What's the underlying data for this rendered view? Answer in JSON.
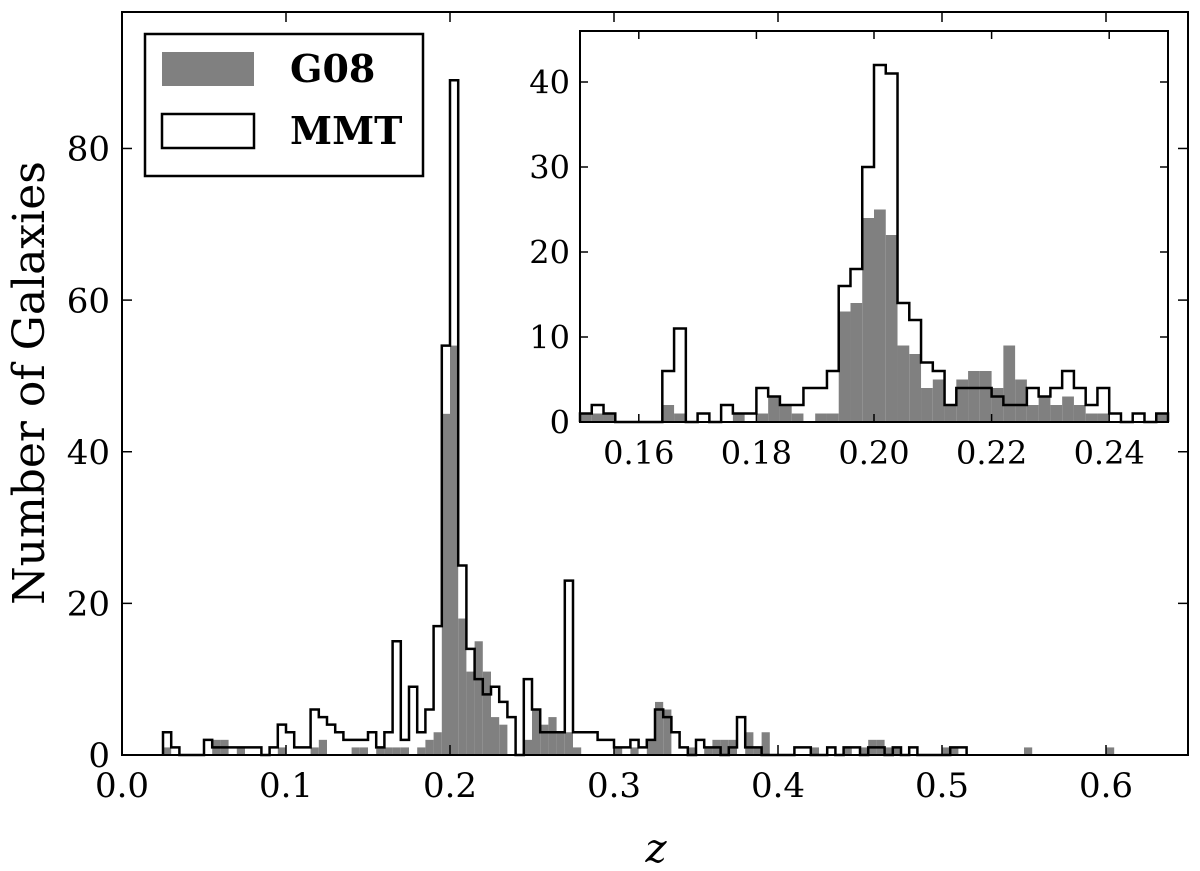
{
  "chart_data": [
    {
      "id": "main",
      "type": "bar",
      "subtype": "histogram",
      "title": "",
      "xlabel": "z",
      "ylabel": "Number of Galaxies",
      "xlim": [
        0.0,
        0.65
      ],
      "ylim": [
        0,
        98
      ],
      "bin_width": 0.005,
      "xticks": [
        0.0,
        0.1,
        0.2,
        0.3,
        0.4,
        0.5,
        0.6
      ],
      "xtick_labels": [
        "0.0",
        "0.1",
        "0.2",
        "0.3",
        "0.4",
        "0.5",
        "0.6"
      ],
      "yticks": [
        0,
        20,
        40,
        60,
        80
      ],
      "ytick_labels": [
        "0",
        "20",
        "40",
        "60",
        "80"
      ],
      "legend": {
        "position": "top-left",
        "entries": [
          {
            "label": "G08",
            "style": "filled",
            "color": "#808080"
          },
          {
            "label": "MMT",
            "style": "outline",
            "color": "#000000"
          }
        ]
      },
      "series": [
        {
          "name": "G08",
          "style": "filled",
          "color": "#808080",
          "bins": [
            [
              0.025,
              1
            ],
            [
              0.055,
              2
            ],
            [
              0.06,
              2
            ],
            [
              0.07,
              1
            ],
            [
              0.095,
              1
            ],
            [
              0.115,
              1
            ],
            [
              0.12,
              2
            ],
            [
              0.14,
              1
            ],
            [
              0.145,
              1
            ],
            [
              0.155,
              1
            ],
            [
              0.16,
              1
            ],
            [
              0.165,
              1
            ],
            [
              0.17,
              1
            ],
            [
              0.18,
              1
            ],
            [
              0.185,
              2
            ],
            [
              0.19,
              3
            ],
            [
              0.195,
              45
            ],
            [
              0.2,
              54
            ],
            [
              0.205,
              18
            ],
            [
              0.21,
              11
            ],
            [
              0.215,
              15
            ],
            [
              0.22,
              11
            ],
            [
              0.225,
              5
            ],
            [
              0.23,
              4
            ],
            [
              0.245,
              2
            ],
            [
              0.25,
              6
            ],
            [
              0.255,
              4
            ],
            [
              0.26,
              5
            ],
            [
              0.265,
              3
            ],
            [
              0.27,
              3
            ],
            [
              0.275,
              1
            ],
            [
              0.3,
              1
            ],
            [
              0.31,
              1
            ],
            [
              0.32,
              2
            ],
            [
              0.325,
              7
            ],
            [
              0.33,
              6
            ],
            [
              0.345,
              1
            ],
            [
              0.355,
              1
            ],
            [
              0.36,
              2
            ],
            [
              0.365,
              2
            ],
            [
              0.37,
              2
            ],
            [
              0.38,
              3
            ],
            [
              0.385,
              1
            ],
            [
              0.39,
              3
            ],
            [
              0.42,
              1
            ],
            [
              0.44,
              1
            ],
            [
              0.45,
              1
            ],
            [
              0.455,
              2
            ],
            [
              0.46,
              2
            ],
            [
              0.465,
              1
            ],
            [
              0.47,
              1
            ],
            [
              0.5,
              1
            ],
            [
              0.505,
              1
            ],
            [
              0.55,
              1
            ],
            [
              0.6,
              1
            ]
          ]
        },
        {
          "name": "MMT",
          "style": "outline",
          "color": "#000000",
          "bins": [
            [
              0.025,
              3
            ],
            [
              0.03,
              1
            ],
            [
              0.05,
              2
            ],
            [
              0.055,
              1
            ],
            [
              0.06,
              1
            ],
            [
              0.065,
              1
            ],
            [
              0.07,
              1
            ],
            [
              0.075,
              1
            ],
            [
              0.08,
              1
            ],
            [
              0.09,
              1
            ],
            [
              0.095,
              4
            ],
            [
              0.1,
              3
            ],
            [
              0.105,
              1
            ],
            [
              0.11,
              1
            ],
            [
              0.115,
              6
            ],
            [
              0.12,
              5
            ],
            [
              0.125,
              4
            ],
            [
              0.13,
              3
            ],
            [
              0.135,
              2
            ],
            [
              0.14,
              2
            ],
            [
              0.145,
              2
            ],
            [
              0.15,
              3
            ],
            [
              0.155,
              1
            ],
            [
              0.16,
              3
            ],
            [
              0.165,
              15
            ],
            [
              0.17,
              2
            ],
            [
              0.175,
              9
            ],
            [
              0.18,
              3
            ],
            [
              0.185,
              6
            ],
            [
              0.19,
              17
            ],
            [
              0.195,
              54
            ],
            [
              0.2,
              89
            ],
            [
              0.205,
              25
            ],
            [
              0.21,
              14
            ],
            [
              0.215,
              10
            ],
            [
              0.22,
              8
            ],
            [
              0.225,
              9
            ],
            [
              0.23,
              7
            ],
            [
              0.235,
              5
            ],
            [
              0.245,
              10
            ],
            [
              0.25,
              6
            ],
            [
              0.255,
              3
            ],
            [
              0.26,
              3
            ],
            [
              0.265,
              3
            ],
            [
              0.27,
              23
            ],
            [
              0.275,
              3
            ],
            [
              0.28,
              3
            ],
            [
              0.285,
              3
            ],
            [
              0.29,
              2
            ],
            [
              0.295,
              2
            ],
            [
              0.3,
              1
            ],
            [
              0.305,
              1
            ],
            [
              0.31,
              2
            ],
            [
              0.315,
              1
            ],
            [
              0.32,
              2
            ],
            [
              0.325,
              6
            ],
            [
              0.33,
              5
            ],
            [
              0.335,
              3
            ],
            [
              0.34,
              1
            ],
            [
              0.35,
              2
            ],
            [
              0.355,
              1
            ],
            [
              0.36,
              1
            ],
            [
              0.37,
              1
            ],
            [
              0.375,
              5
            ],
            [
              0.38,
              1
            ],
            [
              0.385,
              1
            ],
            [
              0.41,
              1
            ],
            [
              0.415,
              1
            ],
            [
              0.43,
              1
            ],
            [
              0.44,
              1
            ],
            [
              0.445,
              1
            ],
            [
              0.455,
              1
            ],
            [
              0.46,
              1
            ],
            [
              0.47,
              1
            ],
            [
              0.48,
              1
            ],
            [
              0.505,
              1
            ],
            [
              0.51,
              1
            ]
          ]
        }
      ]
    },
    {
      "id": "inset",
      "type": "bar",
      "subtype": "histogram",
      "title": "",
      "xlabel": "",
      "ylabel": "",
      "xlim": [
        0.15,
        0.25
      ],
      "ylim": [
        0,
        46
      ],
      "bin_width": 0.002,
      "xticks": [
        0.16,
        0.18,
        0.2,
        0.22,
        0.24
      ],
      "xtick_labels": [
        "0.16",
        "0.18",
        "0.20",
        "0.22",
        "0.24"
      ],
      "yticks": [
        0,
        10,
        20,
        30,
        40
      ],
      "ytick_labels": [
        "0",
        "10",
        "20",
        "30",
        "40"
      ],
      "series": [
        {
          "name": "G08",
          "style": "filled",
          "color": "#808080",
          "bins": [
            [
              0.15,
              1
            ],
            [
              0.152,
              1
            ],
            [
              0.154,
              1
            ],
            [
              0.164,
              2
            ],
            [
              0.166,
              1
            ],
            [
              0.176,
              1
            ],
            [
              0.18,
              1
            ],
            [
              0.182,
              3
            ],
            [
              0.184,
              2
            ],
            [
              0.186,
              1
            ],
            [
              0.19,
              1
            ],
            [
              0.192,
              1
            ],
            [
              0.194,
              13
            ],
            [
              0.196,
              14
            ],
            [
              0.198,
              24
            ],
            [
              0.2,
              25
            ],
            [
              0.202,
              22
            ],
            [
              0.204,
              9
            ],
            [
              0.206,
              8
            ],
            [
              0.208,
              4
            ],
            [
              0.21,
              5
            ],
            [
              0.212,
              2
            ],
            [
              0.214,
              5
            ],
            [
              0.216,
              6
            ],
            [
              0.218,
              6
            ],
            [
              0.22,
              4
            ],
            [
              0.222,
              9
            ],
            [
              0.224,
              5
            ],
            [
              0.226,
              2
            ],
            [
              0.228,
              3
            ],
            [
              0.23,
              2
            ],
            [
              0.232,
              3
            ],
            [
              0.234,
              2
            ],
            [
              0.236,
              1
            ],
            [
              0.238,
              1
            ],
            [
              0.248,
              1
            ]
          ]
        },
        {
          "name": "MMT",
          "style": "outline",
          "color": "#000000",
          "bins": [
            [
              0.15,
              1
            ],
            [
              0.152,
              2
            ],
            [
              0.154,
              1
            ],
            [
              0.164,
              6
            ],
            [
              0.166,
              11
            ],
            [
              0.17,
              1
            ],
            [
              0.174,
              2
            ],
            [
              0.176,
              1
            ],
            [
              0.178,
              1
            ],
            [
              0.18,
              4
            ],
            [
              0.182,
              3
            ],
            [
              0.184,
              2
            ],
            [
              0.186,
              2
            ],
            [
              0.188,
              4
            ],
            [
              0.19,
              4
            ],
            [
              0.192,
              6
            ],
            [
              0.194,
              16
            ],
            [
              0.196,
              18
            ],
            [
              0.198,
              30
            ],
            [
              0.2,
              42
            ],
            [
              0.202,
              41
            ],
            [
              0.204,
              14
            ],
            [
              0.206,
              12
            ],
            [
              0.208,
              7
            ],
            [
              0.21,
              6
            ],
            [
              0.212,
              2
            ],
            [
              0.214,
              4
            ],
            [
              0.216,
              4
            ],
            [
              0.218,
              4
            ],
            [
              0.22,
              3
            ],
            [
              0.222,
              2
            ],
            [
              0.224,
              2
            ],
            [
              0.226,
              4
            ],
            [
              0.228,
              3
            ],
            [
              0.23,
              4
            ],
            [
              0.232,
              6
            ],
            [
              0.234,
              4
            ],
            [
              0.236,
              2
            ],
            [
              0.238,
              4
            ],
            [
              0.24,
              1
            ],
            [
              0.244,
              1
            ],
            [
              0.248,
              1
            ]
          ]
        }
      ]
    }
  ]
}
